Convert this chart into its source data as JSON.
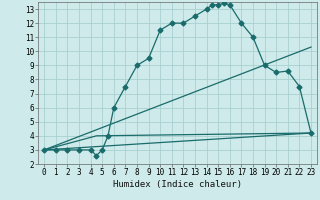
{
  "xlabel": "Humidex (Indice chaleur)",
  "bg_color": "#ceeaea",
  "grid_color": "#aad0d0",
  "line_color": "#1a6b6b",
  "xlim": [
    -0.5,
    23.5
  ],
  "ylim": [
    2,
    13.5
  ],
  "xticks": [
    0,
    1,
    2,
    3,
    4,
    5,
    6,
    7,
    8,
    9,
    10,
    11,
    12,
    13,
    14,
    15,
    16,
    17,
    18,
    19,
    20,
    21,
    22,
    23
  ],
  "yticks": [
    2,
    3,
    4,
    5,
    6,
    7,
    8,
    9,
    10,
    11,
    12,
    13
  ],
  "curve1_x": [
    0,
    1,
    2,
    3,
    4,
    4.5,
    5,
    5.5,
    6,
    7,
    8,
    9,
    10,
    11,
    12,
    13,
    14,
    14.5,
    15,
    15.5,
    16,
    17,
    18,
    19,
    20,
    21,
    22,
    23
  ],
  "curve1_y": [
    3,
    3,
    3,
    3,
    3,
    2.6,
    3,
    4,
    6,
    7.5,
    9,
    9.5,
    11.5,
    12,
    12,
    12.5,
    13,
    13.3,
    13.3,
    13.4,
    13.3,
    12,
    11,
    9,
    8.5,
    8.6,
    7.5,
    4.2
  ],
  "curve2_x": [
    0,
    23
  ],
  "curve2_y": [
    3,
    10.3
  ],
  "curve3_x": [
    0,
    23
  ],
  "curve3_y": [
    3,
    4.2
  ],
  "curve4_x": [
    0,
    4.5,
    23
  ],
  "curve4_y": [
    3,
    4,
    4.2
  ],
  "marker": "D",
  "markersize": 2.5
}
